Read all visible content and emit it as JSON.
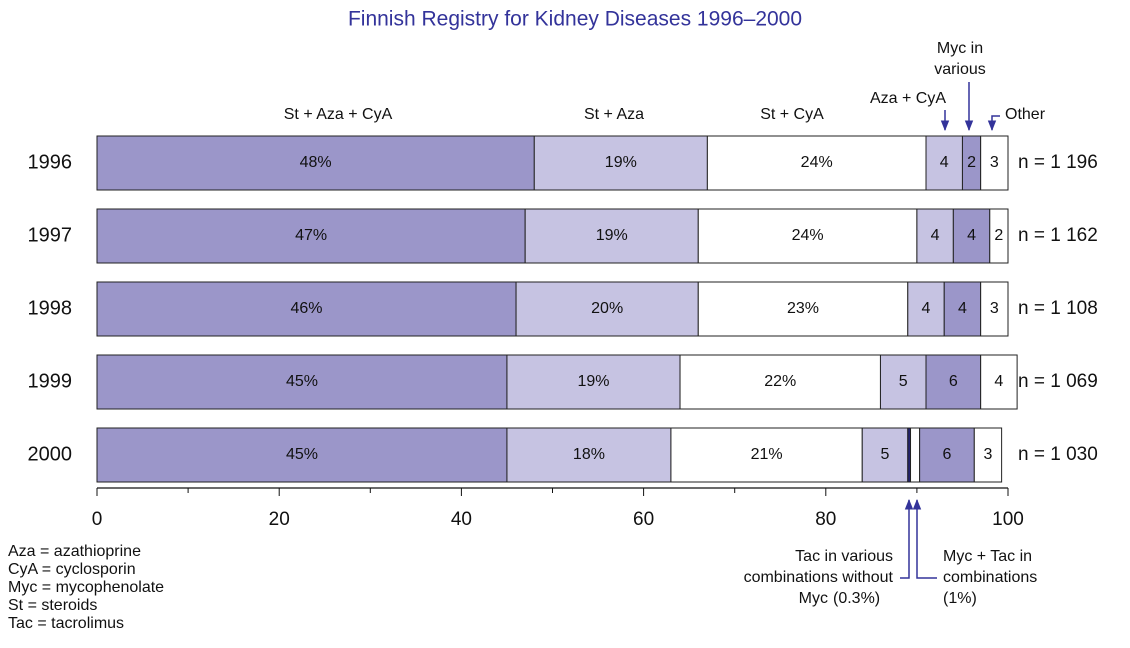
{
  "chart_data": {
    "type": "stacked-bar-horizontal",
    "title": "Finnish Registry for Kidney Diseases 1996–2000",
    "categories": [
      "1996",
      "1997",
      "1998",
      "1999",
      "2000"
    ],
    "row_labels": [
      "n = 1 196",
      "n = 1 162",
      "n = 1 108",
      "n = 1 069",
      "n = 1 030"
    ],
    "series": [
      {
        "name": "St + Aza + CyA",
        "color": "#9b96c9",
        "values": [
          48,
          47,
          46,
          45,
          45
        ],
        "value_labels": [
          "48%",
          "47%",
          "46%",
          "45%",
          "45%"
        ]
      },
      {
        "name": "St + Aza",
        "color": "#c6c3e2",
        "values": [
          19,
          19,
          20,
          19,
          18
        ],
        "value_labels": [
          "19%",
          "19%",
          "20%",
          "19%",
          "18%"
        ]
      },
      {
        "name": "St + CyA",
        "color": "#ffffff",
        "values": [
          24,
          24,
          23,
          22,
          21
        ],
        "value_labels": [
          "24%",
          "24%",
          "23%",
          "22%",
          "21%"
        ]
      },
      {
        "name": "Aza + CyA",
        "color": "#c6c3e2",
        "values": [
          4,
          4,
          4,
          5,
          5
        ]
      },
      {
        "name": "Tac in various combinations without Myc",
        "color": "#23236e",
        "values": [
          null,
          null,
          null,
          null,
          0.3
        ],
        "value_labels": [
          null,
          null,
          null,
          null,
          "(0.3%)"
        ]
      },
      {
        "name": "Myc + Tac in combinations",
        "color": "#ffffff",
        "values": [
          null,
          null,
          null,
          null,
          1
        ],
        "value_labels": [
          null,
          null,
          null,
          null,
          "(1%)"
        ]
      },
      {
        "name": "Myc in various combinations",
        "color": "#9b96c9",
        "values": [
          2,
          4,
          4,
          6,
          6
        ]
      },
      {
        "name": "Other",
        "color": "#ffffff",
        "values": [
          3,
          2,
          3,
          4,
          3
        ]
      }
    ],
    "xlim": [
      0,
      100
    ],
    "xticks": [
      0,
      20,
      40,
      60,
      80,
      100
    ],
    "xminor_ticks": [
      10,
      30,
      50,
      70,
      90
    ],
    "footnotes": [
      "Aza = azathioprine",
      "CyA = cyclosporin",
      "Myc = mycophenolate",
      "St = steroids",
      "Tac = tacrolimus"
    ]
  }
}
